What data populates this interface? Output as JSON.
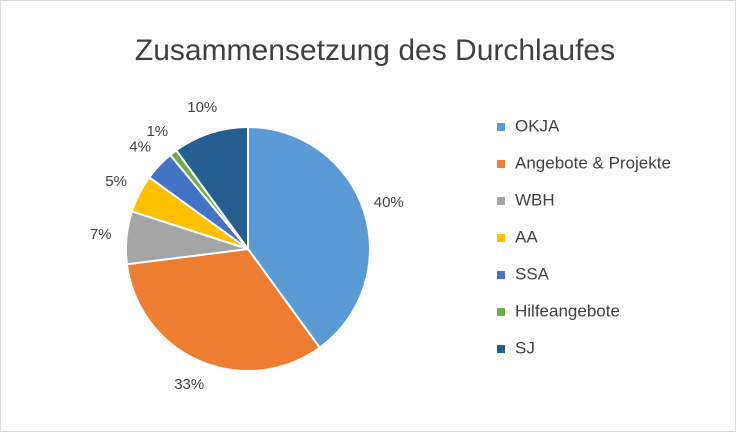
{
  "chart_data": {
    "type": "pie",
    "title": "Zusammensetzung des Durchlaufes",
    "categories": [
      "OKJA",
      "Angebote & Projekte",
      "WBH",
      "AA",
      "SSA",
      "Hilfeangebote",
      "SJ"
    ],
    "values": [
      40,
      33,
      7,
      5,
      4,
      1,
      10
    ],
    "value_labels": [
      "40%",
      "33%",
      "7%",
      "5%",
      "4%",
      "1%",
      "10%"
    ],
    "colors": [
      "#5b9bd5",
      "#ed7d31",
      "#a5a5a5",
      "#ffc000",
      "#4472c4",
      "#70ad47",
      "#255e91"
    ],
    "legend": "right"
  }
}
